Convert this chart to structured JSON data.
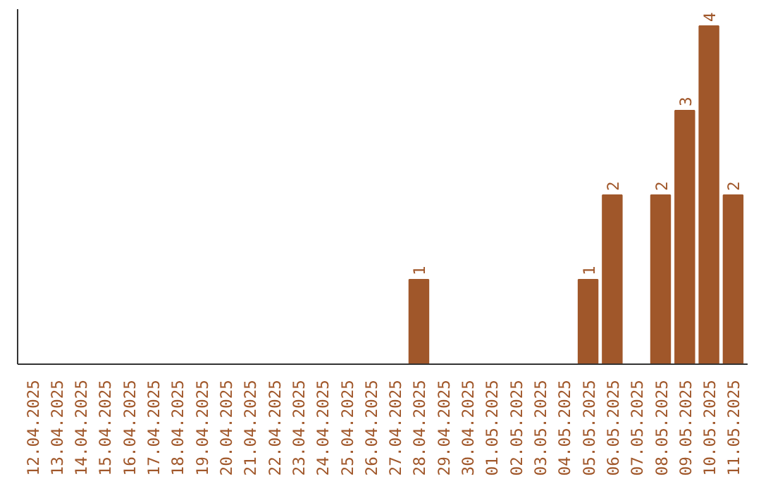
{
  "chart_data": {
    "type": "bar",
    "categories": [
      "12.04.2025",
      "13.04.2025",
      "14.04.2025",
      "15.04.2025",
      "16.04.2025",
      "17.04.2025",
      "18.04.2025",
      "19.04.2025",
      "20.04.2025",
      "21.04.2025",
      "22.04.2025",
      "23.04.2025",
      "24.04.2025",
      "25.04.2025",
      "26.04.2025",
      "27.04.2025",
      "28.04.2025",
      "29.04.2025",
      "30.04.2025",
      "01.05.2025",
      "02.05.2025",
      "03.05.2025",
      "04.05.2025",
      "05.05.2025",
      "06.05.2025",
      "07.05.2025",
      "08.05.2025",
      "09.05.2025",
      "10.05.2025",
      "11.05.2025"
    ],
    "values": [
      null,
      null,
      null,
      null,
      null,
      null,
      null,
      null,
      null,
      null,
      null,
      null,
      null,
      null,
      null,
      null,
      1,
      null,
      null,
      null,
      null,
      null,
      null,
      1,
      2,
      null,
      2,
      3,
      4,
      2
    ],
    "data_labels": true,
    "color": "#a0572a",
    "grid": false
  }
}
